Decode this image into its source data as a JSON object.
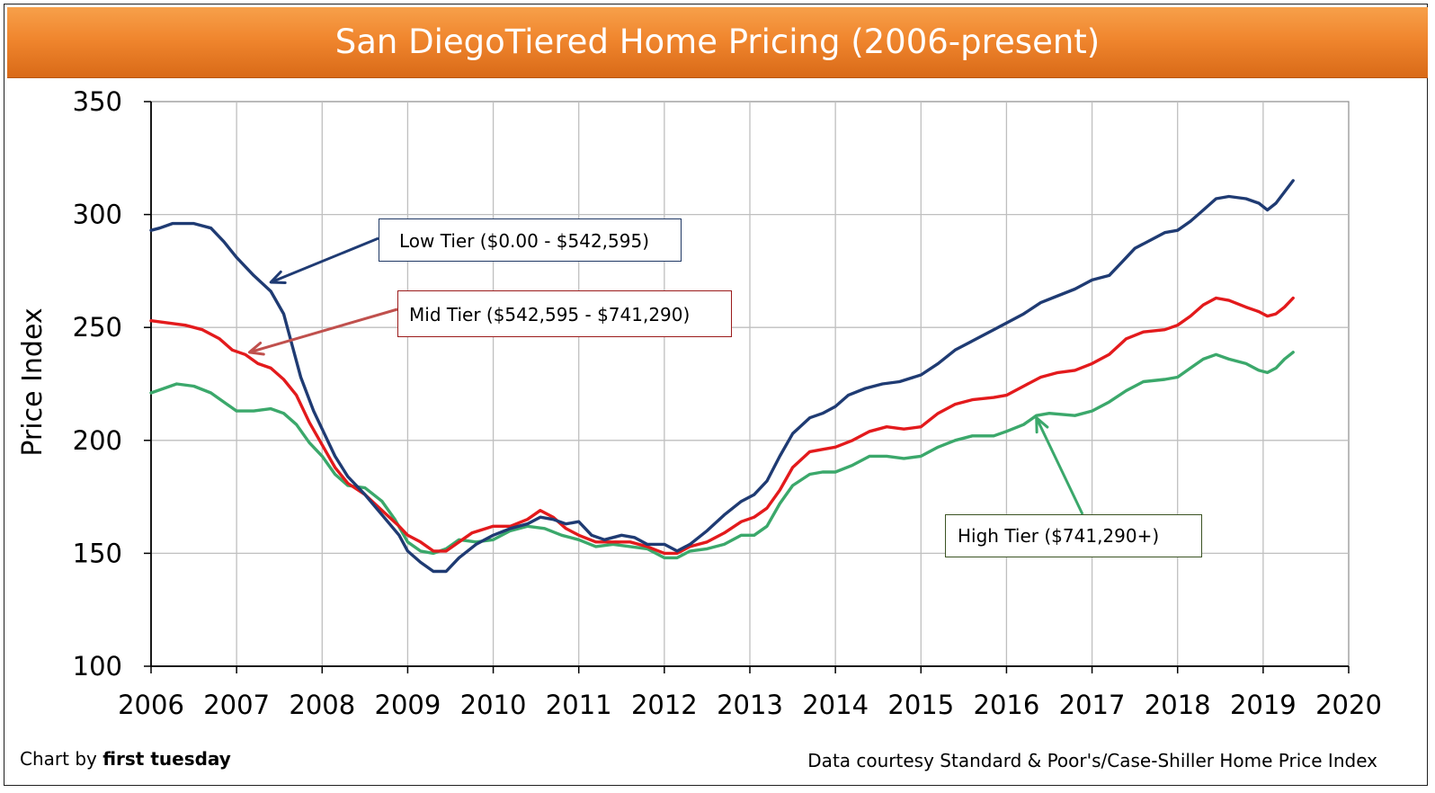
{
  "title": "San DiegoTiered Home Pricing (2006-present)",
  "footer": {
    "credit_prefix": "Chart by ",
    "credit_name": "first tuesday",
    "source": "Data courtesy Standard & Poor's/Case-Shiller Home Price Index"
  },
  "callouts": {
    "low": "Low Tier ($0.00 - $542,595)",
    "mid": "Mid Tier ($542,595 - $741,290)",
    "high": "High Tier ($741,290+)"
  },
  "colors": {
    "low": "#1f3b73",
    "mid": "#e31a1c",
    "high": "#3ba86b",
    "grid": "#bfbfbf",
    "title_bar": "#f0862e"
  },
  "chart_data": {
    "type": "line",
    "title": "San DiegoTiered Home Pricing (2006-present)",
    "xlabel": "",
    "ylabel": "Price Index",
    "xlim": [
      2006,
      2020
    ],
    "ylim": [
      100,
      350
    ],
    "x_ticks": [
      "2006",
      "2007",
      "2008",
      "2009",
      "2010",
      "2011",
      "2012",
      "2013",
      "2014",
      "2015",
      "2016",
      "2017",
      "2018",
      "2019",
      "2020"
    ],
    "y_ticks": [
      "100",
      "150",
      "200",
      "250",
      "300",
      "350"
    ],
    "grid": true,
    "series": [
      {
        "name": "Low Tier ($0.00 - $542,595)",
        "color": "#1f3b73",
        "points": [
          [
            2006.0,
            293
          ],
          [
            2006.1,
            294
          ],
          [
            2006.25,
            296
          ],
          [
            2006.5,
            296
          ],
          [
            2006.7,
            294
          ],
          [
            2006.85,
            288
          ],
          [
            2007.0,
            281
          ],
          [
            2007.2,
            273
          ],
          [
            2007.4,
            266
          ],
          [
            2007.55,
            256
          ],
          [
            2007.65,
            242
          ],
          [
            2007.75,
            228
          ],
          [
            2007.9,
            213
          ],
          [
            2008.0,
            205
          ],
          [
            2008.15,
            193
          ],
          [
            2008.3,
            184
          ],
          [
            2008.5,
            176
          ],
          [
            2008.7,
            167
          ],
          [
            2008.9,
            158
          ],
          [
            2009.0,
            151
          ],
          [
            2009.15,
            146
          ],
          [
            2009.3,
            142
          ],
          [
            2009.45,
            142
          ],
          [
            2009.6,
            148
          ],
          [
            2009.8,
            154
          ],
          [
            2010.0,
            158
          ],
          [
            2010.2,
            161
          ],
          [
            2010.4,
            163
          ],
          [
            2010.55,
            166
          ],
          [
            2010.7,
            165
          ],
          [
            2010.85,
            163
          ],
          [
            2011.0,
            164
          ],
          [
            2011.15,
            158
          ],
          [
            2011.3,
            156
          ],
          [
            2011.5,
            158
          ],
          [
            2011.65,
            157
          ],
          [
            2011.8,
            154
          ],
          [
            2012.0,
            154
          ],
          [
            2012.15,
            151
          ],
          [
            2012.3,
            154
          ],
          [
            2012.5,
            160
          ],
          [
            2012.7,
            167
          ],
          [
            2012.9,
            173
          ],
          [
            2013.05,
            176
          ],
          [
            2013.2,
            182
          ],
          [
            2013.35,
            193
          ],
          [
            2013.5,
            203
          ],
          [
            2013.7,
            210
          ],
          [
            2013.85,
            212
          ],
          [
            2014.0,
            215
          ],
          [
            2014.15,
            220
          ],
          [
            2014.35,
            223
          ],
          [
            2014.55,
            225
          ],
          [
            2014.75,
            226
          ],
          [
            2015.0,
            229
          ],
          [
            2015.2,
            234
          ],
          [
            2015.4,
            240
          ],
          [
            2015.6,
            244
          ],
          [
            2015.85,
            249
          ],
          [
            2016.0,
            252
          ],
          [
            2016.2,
            256
          ],
          [
            2016.4,
            261
          ],
          [
            2016.6,
            264
          ],
          [
            2016.8,
            267
          ],
          [
            2017.0,
            271
          ],
          [
            2017.2,
            273
          ],
          [
            2017.35,
            279
          ],
          [
            2017.5,
            285
          ],
          [
            2017.7,
            289
          ],
          [
            2017.85,
            292
          ],
          [
            2018.0,
            293
          ],
          [
            2018.15,
            297
          ],
          [
            2018.3,
            302
          ],
          [
            2018.45,
            307
          ],
          [
            2018.6,
            308
          ],
          [
            2018.8,
            307
          ],
          [
            2018.95,
            305
          ],
          [
            2019.05,
            302
          ],
          [
            2019.15,
            305
          ],
          [
            2019.25,
            310
          ],
          [
            2019.35,
            315
          ]
        ]
      },
      {
        "name": "Mid Tier ($542,595 - $741,290)",
        "color": "#e31a1c",
        "points": [
          [
            2006.0,
            253
          ],
          [
            2006.2,
            252
          ],
          [
            2006.4,
            251
          ],
          [
            2006.6,
            249
          ],
          [
            2006.8,
            245
          ],
          [
            2006.95,
            240
          ],
          [
            2007.1,
            238
          ],
          [
            2007.25,
            234
          ],
          [
            2007.4,
            232
          ],
          [
            2007.55,
            227
          ],
          [
            2007.7,
            220
          ],
          [
            2007.85,
            208
          ],
          [
            2008.0,
            198
          ],
          [
            2008.15,
            188
          ],
          [
            2008.3,
            181
          ],
          [
            2008.5,
            176
          ],
          [
            2008.7,
            169
          ],
          [
            2008.9,
            162
          ],
          [
            2009.0,
            158
          ],
          [
            2009.15,
            155
          ],
          [
            2009.3,
            151
          ],
          [
            2009.45,
            151
          ],
          [
            2009.6,
            155
          ],
          [
            2009.75,
            159
          ],
          [
            2010.0,
            162
          ],
          [
            2010.2,
            162
          ],
          [
            2010.4,
            165
          ],
          [
            2010.55,
            169
          ],
          [
            2010.7,
            166
          ],
          [
            2010.85,
            161
          ],
          [
            2011.0,
            158
          ],
          [
            2011.2,
            155
          ],
          [
            2011.4,
            155
          ],
          [
            2011.6,
            155
          ],
          [
            2011.8,
            153
          ],
          [
            2012.0,
            150
          ],
          [
            2012.15,
            150
          ],
          [
            2012.3,
            153
          ],
          [
            2012.5,
            155
          ],
          [
            2012.7,
            159
          ],
          [
            2012.9,
            164
          ],
          [
            2013.05,
            166
          ],
          [
            2013.2,
            170
          ],
          [
            2013.35,
            178
          ],
          [
            2013.5,
            188
          ],
          [
            2013.7,
            195
          ],
          [
            2013.85,
            196
          ],
          [
            2014.0,
            197
          ],
          [
            2014.2,
            200
          ],
          [
            2014.4,
            204
          ],
          [
            2014.6,
            206
          ],
          [
            2014.8,
            205
          ],
          [
            2015.0,
            206
          ],
          [
            2015.2,
            212
          ],
          [
            2015.4,
            216
          ],
          [
            2015.6,
            218
          ],
          [
            2015.85,
            219
          ],
          [
            2016.0,
            220
          ],
          [
            2016.2,
            224
          ],
          [
            2016.4,
            228
          ],
          [
            2016.6,
            230
          ],
          [
            2016.8,
            231
          ],
          [
            2017.0,
            234
          ],
          [
            2017.2,
            238
          ],
          [
            2017.4,
            245
          ],
          [
            2017.6,
            248
          ],
          [
            2017.85,
            249
          ],
          [
            2018.0,
            251
          ],
          [
            2018.15,
            255
          ],
          [
            2018.3,
            260
          ],
          [
            2018.45,
            263
          ],
          [
            2018.6,
            262
          ],
          [
            2018.8,
            259
          ],
          [
            2018.95,
            257
          ],
          [
            2019.05,
            255
          ],
          [
            2019.15,
            256
          ],
          [
            2019.25,
            259
          ],
          [
            2019.35,
            263
          ]
        ]
      },
      {
        "name": "High Tier ($741,290+)",
        "color": "#3ba86b",
        "points": [
          [
            2006.0,
            221
          ],
          [
            2006.15,
            223
          ],
          [
            2006.3,
            225
          ],
          [
            2006.5,
            224
          ],
          [
            2006.7,
            221
          ],
          [
            2006.85,
            217
          ],
          [
            2007.0,
            213
          ],
          [
            2007.2,
            213
          ],
          [
            2007.4,
            214
          ],
          [
            2007.55,
            212
          ],
          [
            2007.7,
            207
          ],
          [
            2007.85,
            199
          ],
          [
            2008.0,
            193
          ],
          [
            2008.15,
            185
          ],
          [
            2008.3,
            180
          ],
          [
            2008.5,
            179
          ],
          [
            2008.7,
            173
          ],
          [
            2008.85,
            165
          ],
          [
            2009.0,
            155
          ],
          [
            2009.15,
            151
          ],
          [
            2009.3,
            150
          ],
          [
            2009.45,
            152
          ],
          [
            2009.6,
            156
          ],
          [
            2009.8,
            155
          ],
          [
            2010.0,
            156
          ],
          [
            2010.2,
            160
          ],
          [
            2010.4,
            162
          ],
          [
            2010.6,
            161
          ],
          [
            2010.8,
            158
          ],
          [
            2011.0,
            156
          ],
          [
            2011.2,
            153
          ],
          [
            2011.4,
            154
          ],
          [
            2011.6,
            153
          ],
          [
            2011.8,
            152
          ],
          [
            2012.0,
            148
          ],
          [
            2012.15,
            148
          ],
          [
            2012.3,
            151
          ],
          [
            2012.5,
            152
          ],
          [
            2012.7,
            154
          ],
          [
            2012.9,
            158
          ],
          [
            2013.05,
            158
          ],
          [
            2013.2,
            162
          ],
          [
            2013.35,
            172
          ],
          [
            2013.5,
            180
          ],
          [
            2013.7,
            185
          ],
          [
            2013.85,
            186
          ],
          [
            2014.0,
            186
          ],
          [
            2014.2,
            189
          ],
          [
            2014.4,
            193
          ],
          [
            2014.6,
            193
          ],
          [
            2014.8,
            192
          ],
          [
            2015.0,
            193
          ],
          [
            2015.2,
            197
          ],
          [
            2015.4,
            200
          ],
          [
            2015.6,
            202
          ],
          [
            2015.85,
            202
          ],
          [
            2016.0,
            204
          ],
          [
            2016.2,
            207
          ],
          [
            2016.35,
            211
          ],
          [
            2016.5,
            212
          ],
          [
            2016.8,
            211
          ],
          [
            2017.0,
            213
          ],
          [
            2017.2,
            217
          ],
          [
            2017.4,
            222
          ],
          [
            2017.6,
            226
          ],
          [
            2017.85,
            227
          ],
          [
            2018.0,
            228
          ],
          [
            2018.15,
            232
          ],
          [
            2018.3,
            236
          ],
          [
            2018.45,
            238
          ],
          [
            2018.6,
            236
          ],
          [
            2018.8,
            234
          ],
          [
            2018.95,
            231
          ],
          [
            2019.05,
            230
          ],
          [
            2019.15,
            232
          ],
          [
            2019.25,
            236
          ],
          [
            2019.35,
            239
          ]
        ]
      }
    ],
    "annotations": [
      {
        "series": "Low Tier ($0.00 - $542,595)",
        "text": "Low Tier ($0.00 - $542,595)",
        "arrow_to": [
          2007.4,
          270
        ]
      },
      {
        "series": "Mid Tier ($542,595 - $741,290)",
        "text": "Mid Tier ($542,595 - $741,290)",
        "arrow_to": [
          2007.15,
          239
        ]
      },
      {
        "series": "High Tier ($741,290+)",
        "text": "High Tier ($741,290+)",
        "arrow_to": [
          2016.35,
          210
        ]
      }
    ]
  }
}
